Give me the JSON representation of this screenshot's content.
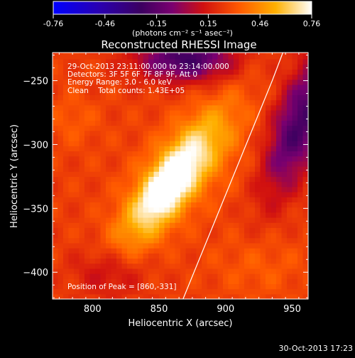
{
  "chart_data": {
    "type": "heatmap",
    "title": "Reconstructed RHESSI Image",
    "xlabel": "Heliocentric X (arcsec)",
    "ylabel": "Heliocentric Y (arcsec)",
    "xlim": [
      770,
      962
    ],
    "ylim": [
      -421,
      -228
    ],
    "x_ticks": [
      800,
      850,
      900,
      950
    ],
    "y_ticks": [
      -250,
      -300,
      -350,
      -400
    ],
    "colorbar": {
      "min": -0.76,
      "max": 0.76,
      "ticks": [
        "-0.76",
        "-0.46",
        "-0.15",
        "0.15",
        "0.46",
        "0.76"
      ],
      "unit_label": "(photons cm⁻² s⁻¹ asec⁻²)"
    },
    "annotations": [
      "29-Oct-2013 23:11:00.000 to 23:14:00.000",
      "Detectors: 3F 5F 6F 7F 8F 9F, Att 0",
      "Energy Range: 3.0 - 6.0 keV",
      "Clean    Total counts: 1.43E+05"
    ],
    "peak_label": "Position of Peak = [860,-331]",
    "peak": [
      860,
      -331
    ],
    "limb_line": [
      [
        868,
        -421
      ],
      [
        935,
        -250
      ],
      [
        943,
        -228
      ]
    ],
    "blobs": [
      {
        "x": 860,
        "y": -328,
        "sx": 14,
        "sy": 42,
        "rot": 35,
        "amp": 0.55
      },
      {
        "x": 855,
        "y": -333,
        "sx": 7,
        "sy": 16,
        "rot": 35,
        "amp": 0.22
      },
      {
        "x": 912,
        "y": -305,
        "sx": 55,
        "sy": 30,
        "rot": -15,
        "amp": 0.06
      },
      {
        "x": 870,
        "y": -233,
        "sx": 25,
        "sy": 12,
        "rot": 0,
        "amp": -0.48
      },
      {
        "x": 955,
        "y": -285,
        "sx": 14,
        "sy": 40,
        "rot": 20,
        "amp": -0.5
      },
      {
        "x": 812,
        "y": -400,
        "sx": 18,
        "sy": 14,
        "rot": 0,
        "amp": -0.18
      },
      {
        "x": 785,
        "y": -280,
        "sx": 14,
        "sy": 14,
        "rot": 0,
        "amp": 0.08
      },
      {
        "x": 925,
        "y": -395,
        "sx": 25,
        "sy": 18,
        "rot": 0,
        "amp": 0.08
      }
    ],
    "background_level": 0.25
  },
  "footer": {
    "timestamp": "30-Oct-2013 17:23"
  }
}
